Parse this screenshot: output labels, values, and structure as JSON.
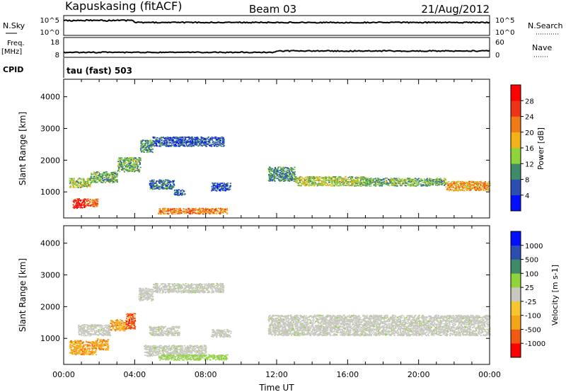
{
  "header": {
    "station": "Kapuskasing (fitACF)",
    "beam": "Beam 03",
    "date": "21/Aug/2012"
  },
  "top_panels": {
    "nsky_label": "N.Sky",
    "nsky_ticks": [
      "10^5",
      "10^0"
    ],
    "nsearch_label": "N.Search",
    "nsearch_ticks": [
      "10^5",
      "10^0"
    ],
    "freq_label": "Freq.",
    "freq_unit": "[MHz]",
    "freq_ticks": [
      "18",
      "8"
    ],
    "nave_label": "Nave",
    "nave_ticks": [
      "60",
      "0"
    ],
    "cpid_label": "CPID",
    "cpid_value": "tau (fast) 503"
  },
  "chart_data": [
    {
      "type": "heatmap",
      "name": "power-panel",
      "ylabel": "Slant Range [km]",
      "ylim": [
        180,
        4550
      ],
      "yticks": [
        {
          "value": 1000,
          "label": "1000"
        },
        {
          "value": 2000,
          "label": "2000"
        },
        {
          "value": 3000,
          "label": "3000"
        },
        {
          "value": 4000,
          "label": "4000"
        }
      ],
      "colorbar": {
        "label": "Power [dB]",
        "ticks": [
          "4",
          "8",
          "12",
          "16",
          "20",
          "24",
          "28"
        ],
        "colors": [
          "#0010ff",
          "#2a4fb0",
          "#3f8a68",
          "#8fd43a",
          "#f3b21a",
          "#f07a16",
          "#ee3318",
          "#ff0000"
        ]
      },
      "bands": [
        {
          "t0": 0.5,
          "t1": 1.2,
          "r0": 500,
          "r1": 800,
          "level": 28
        },
        {
          "t0": 1.2,
          "t1": 1.9,
          "r0": 550,
          "r1": 800,
          "level": 24
        },
        {
          "t0": 0.3,
          "t1": 1.5,
          "r0": 1150,
          "r1": 1450,
          "level": 14
        },
        {
          "t0": 1.5,
          "t1": 3.0,
          "r0": 1300,
          "r1": 1650,
          "level": 12
        },
        {
          "t0": 3.0,
          "t1": 4.3,
          "r0": 1650,
          "r1": 2100,
          "level": 12
        },
        {
          "t0": 4.3,
          "t1": 5.0,
          "r0": 2250,
          "r1": 2650,
          "level": 10
        },
        {
          "t0": 5.0,
          "t1": 9.0,
          "r0": 2450,
          "r1": 2750,
          "level": 6
        },
        {
          "t0": 4.8,
          "t1": 6.2,
          "r0": 1100,
          "r1": 1400,
          "level": 8
        },
        {
          "t0": 6.2,
          "t1": 6.8,
          "r0": 900,
          "r1": 1100,
          "level": 6
        },
        {
          "t0": 8.3,
          "t1": 9.4,
          "r0": 1050,
          "r1": 1300,
          "level": 6
        },
        {
          "t0": 5.3,
          "t1": 9.2,
          "r0": 320,
          "r1": 500,
          "level": 22
        },
        {
          "t0": 11.5,
          "t1": 13.0,
          "r0": 1350,
          "r1": 1800,
          "level": 10
        },
        {
          "t0": 13.0,
          "t1": 17.0,
          "r0": 1200,
          "r1": 1500,
          "level": 14
        },
        {
          "t0": 17.0,
          "t1": 21.5,
          "r0": 1200,
          "r1": 1450,
          "level": 12
        },
        {
          "t0": 21.5,
          "t1": 24.0,
          "r0": 1050,
          "r1": 1350,
          "level": 20
        }
      ]
    },
    {
      "type": "heatmap",
      "name": "velocity-panel",
      "ylabel": "Slant Range [km]",
      "xlabel": "Time UT",
      "xlim": [
        0,
        24
      ],
      "xticks": [
        {
          "value": 0,
          "label": "00:00"
        },
        {
          "value": 4,
          "label": "04:00"
        },
        {
          "value": 8,
          "label": "08:00"
        },
        {
          "value": 12,
          "label": "12:00"
        },
        {
          "value": 16,
          "label": "16:00"
        },
        {
          "value": 20,
          "label": "20:00"
        },
        {
          "value": 24,
          "label": "00:00"
        }
      ],
      "ylim": [
        180,
        4550
      ],
      "yticks": [
        {
          "value": 1000,
          "label": "1000"
        },
        {
          "value": 2000,
          "label": "2000"
        },
        {
          "value": 3000,
          "label": "3000"
        },
        {
          "value": 4000,
          "label": "4000"
        }
      ],
      "colorbar": {
        "label": "Velocity [m s-1]",
        "ticks": [
          "-1000",
          "-500",
          "-100",
          "-25",
          "25",
          "100",
          "500",
          "1000"
        ],
        "colors": [
          "#ff0000",
          "#f05a14",
          "#f3a418",
          "#f5c630",
          "#c8c8c0",
          "#8fd43a",
          "#3f8a68",
          "#2a4fb0",
          "#0010ff"
        ]
      },
      "bands": [
        {
          "t0": 0.3,
          "t1": 1.8,
          "r0": 500,
          "r1": 950,
          "level": -100
        },
        {
          "t0": 1.8,
          "t1": 2.5,
          "r0": 650,
          "r1": 1000,
          "level": -100
        },
        {
          "t0": 0.8,
          "t1": 2.6,
          "r0": 1100,
          "r1": 1450,
          "level": 0
        },
        {
          "t0": 2.6,
          "t1": 3.5,
          "r0": 1250,
          "r1": 1600,
          "level": -100
        },
        {
          "t0": 3.5,
          "t1": 4.0,
          "r0": 1300,
          "r1": 1800,
          "level": -500
        },
        {
          "t0": 4.2,
          "t1": 5.0,
          "r0": 2200,
          "r1": 2600,
          "level": 0
        },
        {
          "t0": 5.0,
          "t1": 9.0,
          "r0": 2450,
          "r1": 2750,
          "level": 0
        },
        {
          "t0": 4.8,
          "t1": 6.5,
          "r0": 1100,
          "r1": 1400,
          "level": 0
        },
        {
          "t0": 8.3,
          "t1": 9.4,
          "r0": 1050,
          "r1": 1300,
          "level": 0
        },
        {
          "t0": 4.5,
          "t1": 8.0,
          "r0": 450,
          "r1": 800,
          "level": 0
        },
        {
          "t0": 5.3,
          "t1": 9.2,
          "r0": 330,
          "r1": 500,
          "level": 100
        },
        {
          "t0": 11.5,
          "t1": 24.0,
          "r0": 1100,
          "r1": 1750,
          "level": 0
        }
      ]
    }
  ]
}
